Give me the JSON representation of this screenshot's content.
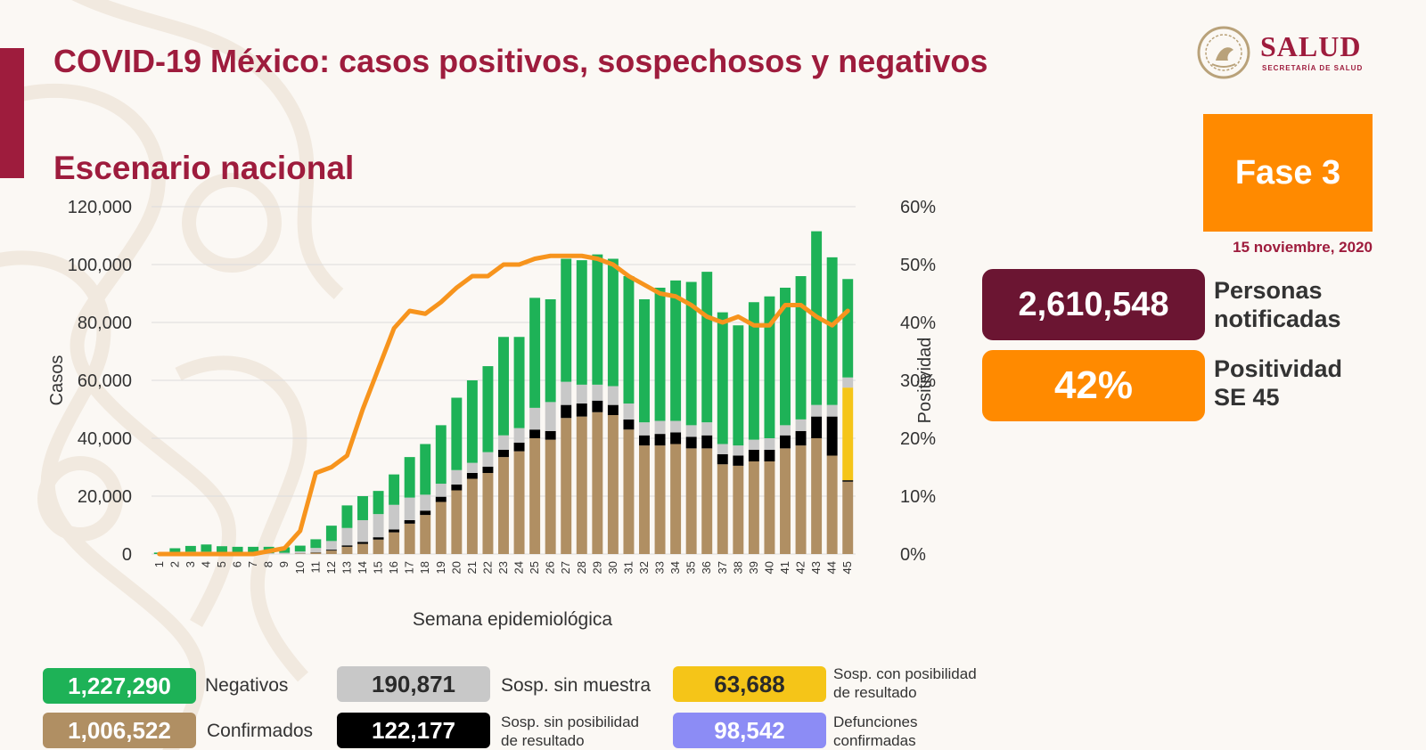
{
  "header": {
    "title": "COVID-19 México: casos positivos, sospechosos y negativos",
    "subtitle": "Escenario nacional"
  },
  "logo": {
    "wordmark": "SALUD",
    "subtitle": "SECRETARÍA DE SALUD",
    "icon": "coat-of-arms-icon"
  },
  "phase": {
    "label": "Fase 3",
    "date": "15 noviembre, 2020"
  },
  "kpis": {
    "notified": {
      "value": "2,610,548",
      "label_line1": "Personas",
      "label_line2": "notificadas"
    },
    "positivity": {
      "value": "42%",
      "label_line1": "Positividad",
      "label_line2": "SE 45"
    }
  },
  "legend": {
    "negativos": {
      "value": "1,227,290",
      "label": "Negativos"
    },
    "confirmados": {
      "value": "1,006,522",
      "label": "Confirmados"
    },
    "sin_muestra": {
      "value": "190,871",
      "label": "Sosp. sin muestra"
    },
    "sin_posibilidad": {
      "value": "122,177",
      "label_line1": "Sosp. sin posibilidad",
      "label_line2": "de resultado"
    },
    "con_posibilidad": {
      "value": "63,688",
      "label_line1": "Sosp. con posibilidad",
      "label_line2": "de resultado"
    },
    "defunciones": {
      "value": "98,542",
      "label_line1": "Defunciones",
      "label_line2": "confirmadas"
    }
  },
  "colors": {
    "brand": "#9e1c3d",
    "negativos": "#1eb257",
    "confirmados": "#b08f63",
    "sin_muestra": "#c8c8c8",
    "sin_posibilidad": "#000000",
    "con_posibilidad": "#f5c518",
    "defunciones": "#8c8cf5",
    "positividad": "#f7941d",
    "phase_box": "#ff8a00",
    "notified_box": "#6b1532"
  },
  "chart_data": {
    "type": "bar",
    "stacked": true,
    "xlabel": "Semana epidemiológica",
    "ylabel": "Casos",
    "y2label": "Positividad",
    "ylim": [
      0,
      120000
    ],
    "y2lim": [
      0,
      60
    ],
    "yticks": [
      "0",
      "20,000",
      "40,000",
      "60,000",
      "80,000",
      "100,000",
      "120,000"
    ],
    "y2ticks": [
      "0%",
      "10%",
      "20%",
      "30%",
      "40%",
      "50%",
      "60%"
    ],
    "grid": true,
    "categories": [
      "1",
      "2",
      "3",
      "4",
      "5",
      "6",
      "7",
      "8",
      "9",
      "10",
      "11",
      "12",
      "13",
      "14",
      "15",
      "16",
      "17",
      "18",
      "19",
      "20",
      "21",
      "22",
      "23",
      "24",
      "25",
      "26",
      "27",
      "28",
      "29",
      "30",
      "31",
      "32",
      "33",
      "34",
      "35",
      "36",
      "37",
      "38",
      "39",
      "40",
      "41",
      "42",
      "43",
      "44",
      "45"
    ],
    "series": [
      {
        "name": "Confirmados",
        "key": "confirmados",
        "values": [
          0,
          0,
          0,
          0,
          0,
          0,
          0,
          0,
          30,
          150,
          500,
          1200,
          2500,
          3500,
          5000,
          7500,
          10500,
          13500,
          18000,
          22000,
          26000,
          28000,
          33500,
          35500,
          40000,
          39500,
          47000,
          47500,
          49000,
          48000,
          43000,
          37500,
          37500,
          38000,
          36500,
          36500,
          31000,
          30500,
          32000,
          32000,
          36500,
          37500,
          40000,
          34000,
          25000
        ]
      },
      {
        "name": "Sosp. sin posibilidad de resultado",
        "key": "sin_posibilidad",
        "values": [
          0,
          0,
          0,
          0,
          0,
          0,
          0,
          0,
          0,
          50,
          100,
          300,
          500,
          700,
          800,
          1000,
          1200,
          1500,
          1800,
          2000,
          2000,
          2200,
          2500,
          3000,
          3000,
          3000,
          4500,
          4500,
          4000,
          3500,
          3500,
          3500,
          4000,
          4000,
          4000,
          4500,
          3500,
          3500,
          4000,
          4000,
          4500,
          5000,
          7500,
          13500,
          500
        ]
      },
      {
        "name": "Sosp. con posibilidad de resultado",
        "key": "con_posibilidad",
        "values": [
          0,
          0,
          0,
          0,
          0,
          0,
          0,
          0,
          0,
          0,
          0,
          0,
          0,
          0,
          0,
          0,
          0,
          0,
          0,
          0,
          0,
          0,
          0,
          0,
          0,
          0,
          0,
          0,
          0,
          0,
          0,
          0,
          0,
          0,
          0,
          0,
          0,
          0,
          0,
          0,
          0,
          0,
          0,
          0,
          32000
        ]
      },
      {
        "name": "Sosp. sin muestra",
        "key": "sin_muestra",
        "values": [
          0,
          300,
          800,
          800,
          600,
          500,
          400,
          300,
          400,
          700,
          1500,
          3000,
          6000,
          7500,
          8000,
          8500,
          7800,
          5500,
          4500,
          5000,
          3500,
          5000,
          5000,
          5000,
          7500,
          10000,
          8000,
          6500,
          5500,
          6500,
          5500,
          4500,
          4500,
          4000,
          4000,
          4500,
          3500,
          3500,
          3500,
          4000,
          3500,
          4000,
          4000,
          4000,
          3500
        ]
      },
      {
        "name": "Negativos",
        "key": "negativos",
        "values": [
          500,
          1700,
          2000,
          2500,
          2100,
          2000,
          2100,
          2200,
          1900,
          2000,
          3000,
          5300,
          7800,
          8300,
          8000,
          10500,
          14000,
          17500,
          20200,
          25000,
          28500,
          29700,
          34000,
          31500,
          38000,
          35500,
          42500,
          43000,
          45000,
          44000,
          44000,
          42500,
          46000,
          48500,
          49500,
          52000,
          45500,
          41500,
          47500,
          49000,
          47500,
          49500,
          60000,
          51000,
          34000
        ]
      }
    ],
    "positivity": [
      0,
      0,
      0,
      0,
      0,
      0,
      0,
      0.5,
      1,
      4,
      14,
      15,
      17,
      25,
      32,
      39,
      42,
      41.5,
      43.5,
      46,
      48,
      48,
      50,
      50,
      51,
      51.5,
      51.5,
      51.5,
      51,
      50,
      48,
      46.5,
      45,
      44.5,
      43,
      41,
      40,
      41,
      39.5,
      39.5,
      43,
      43,
      41,
      39.5,
      42
    ]
  }
}
